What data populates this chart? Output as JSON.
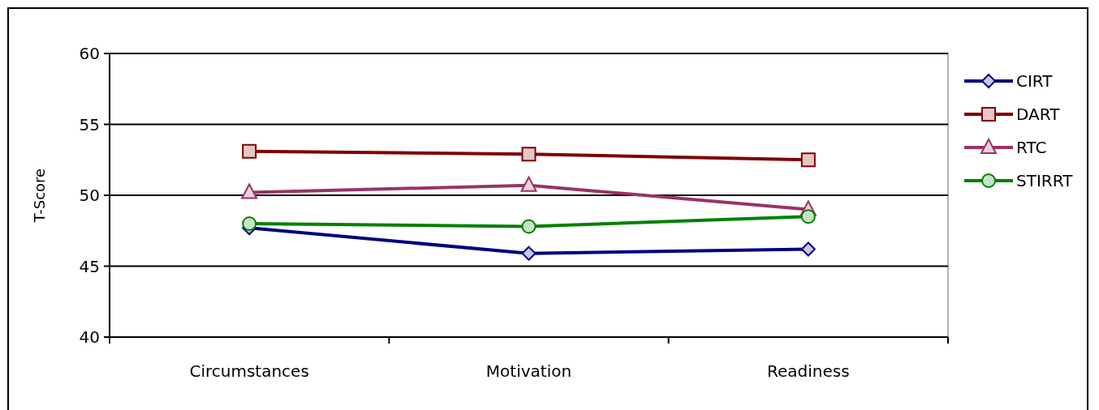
{
  "chart_data": {
    "type": "line",
    "ylabel": "T-Score",
    "categories": [
      "Circumstances",
      "Motivation",
      "Readiness"
    ],
    "series": [
      {
        "name": "CIRT",
        "color": "#000080",
        "marker": "diamond",
        "values": [
          47.7,
          45.9,
          46.2
        ]
      },
      {
        "name": "DART",
        "color": "#800000",
        "marker": "square",
        "values": [
          53.1,
          52.9,
          52.5
        ]
      },
      {
        "name": "RTC",
        "color": "#993366",
        "marker": "triangle",
        "values": [
          50.2,
          50.7,
          49.0
        ]
      },
      {
        "name": "STIRRT",
        "color": "#008000",
        "marker": "circle",
        "values": [
          48.0,
          47.8,
          48.5
        ]
      }
    ],
    "ylim": [
      40,
      60
    ],
    "yticks": [
      40,
      45,
      50,
      55,
      60
    ],
    "grid": "y",
    "legend": "right"
  }
}
